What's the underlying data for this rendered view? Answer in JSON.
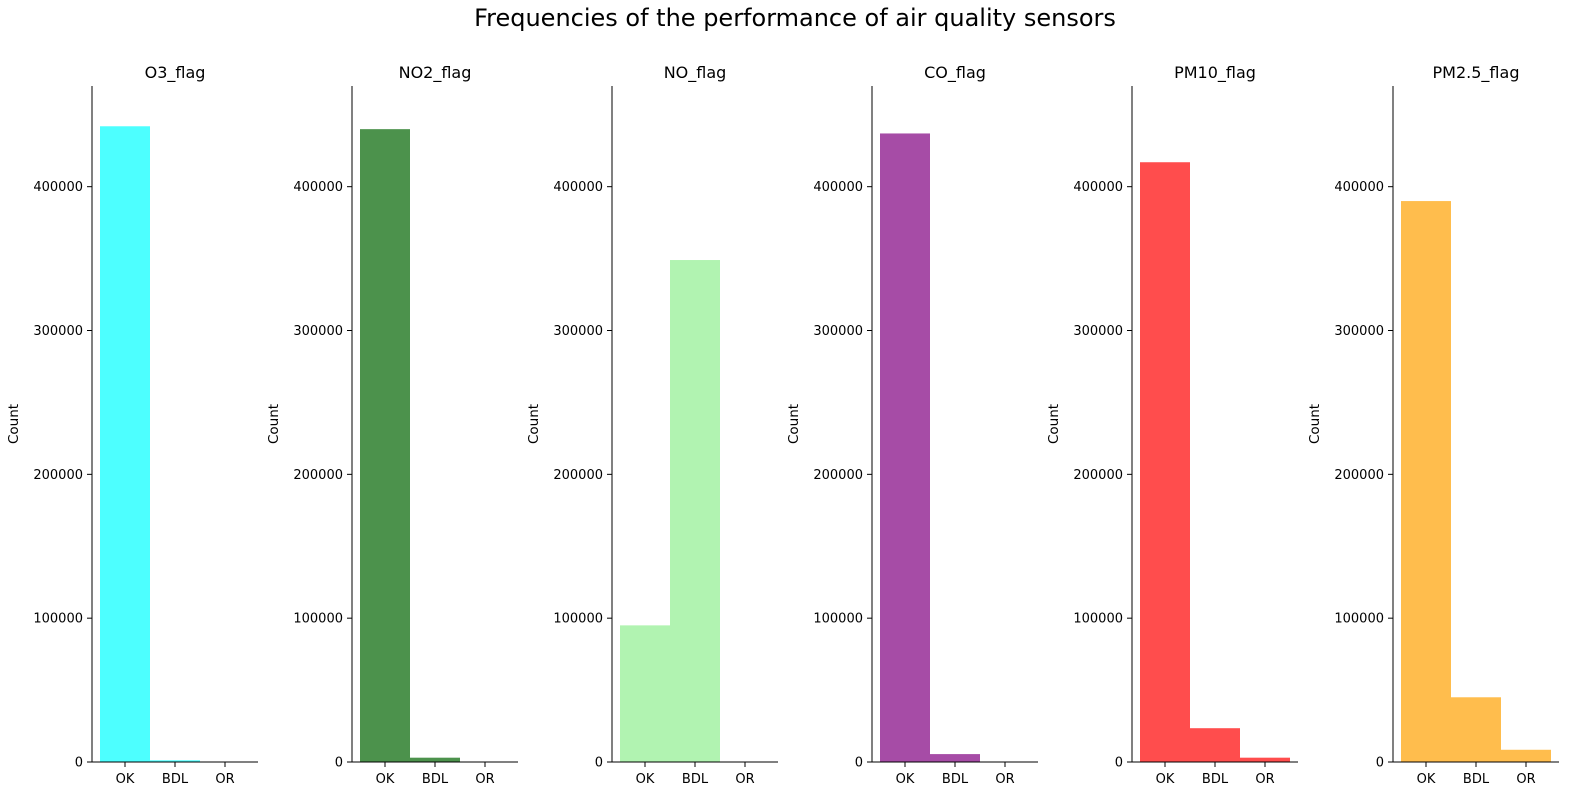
{
  "figure": {
    "title": "Frequencies of the performance of air quality sensors"
  },
  "chart_data": [
    {
      "type": "bar",
      "title": "O3_flag",
      "categories": [
        "OK",
        "BDL",
        "OR"
      ],
      "values": [
        442000,
        1200,
        100
      ],
      "color": "#4dffff",
      "xlabel": "",
      "ylabel": "Count",
      "yticks": [
        "0",
        "100000",
        "200000",
        "300000",
        "400000"
      ],
      "ylim": [
        0,
        470000
      ]
    },
    {
      "type": "bar",
      "title": "NO2_flag",
      "categories": [
        "OK",
        "BDL",
        "OR"
      ],
      "values": [
        440000,
        3000,
        100
      ],
      "color": "#4c924c",
      "xlabel": "",
      "ylabel": "Count",
      "yticks": [
        "0",
        "100000",
        "200000",
        "300000",
        "400000"
      ],
      "ylim": [
        0,
        470000
      ]
    },
    {
      "type": "bar",
      "title": "NO_flag",
      "categories": [
        "OK",
        "BDL",
        "OR"
      ],
      "values": [
        95000,
        349000,
        100
      ],
      "color": "#b1f3b1",
      "xlabel": "",
      "ylabel": "Count",
      "yticks": [
        "0",
        "100000",
        "200000",
        "300000",
        "400000"
      ],
      "ylim": [
        0,
        470000
      ]
    },
    {
      "type": "bar",
      "title": "CO_flag",
      "categories": [
        "OK",
        "BDL",
        "OR"
      ],
      "values": [
        437000,
        5500,
        100
      ],
      "color": "#a64ca6",
      "xlabel": "",
      "ylabel": "Count",
      "yticks": [
        "0",
        "100000",
        "200000",
        "300000",
        "400000"
      ],
      "ylim": [
        0,
        470000
      ]
    },
    {
      "type": "bar",
      "title": "PM10_flag",
      "categories": [
        "OK",
        "BDL",
        "OR"
      ],
      "values": [
        417000,
        23500,
        3000
      ],
      "color": "#ff4d4d",
      "xlabel": "",
      "ylabel": "Count",
      "yticks": [
        "0",
        "100000",
        "200000",
        "300000",
        "400000"
      ],
      "ylim": [
        0,
        470000
      ]
    },
    {
      "type": "bar",
      "title": "PM2.5_flag",
      "categories": [
        "OK",
        "BDL",
        "OR"
      ],
      "values": [
        390000,
        45000,
        8500
      ],
      "color": "#ffbd4d",
      "xlabel": "",
      "ylabel": "Count",
      "yticks": [
        "0",
        "100000",
        "200000",
        "300000",
        "400000"
      ],
      "ylim": [
        0,
        470000
      ]
    }
  ]
}
